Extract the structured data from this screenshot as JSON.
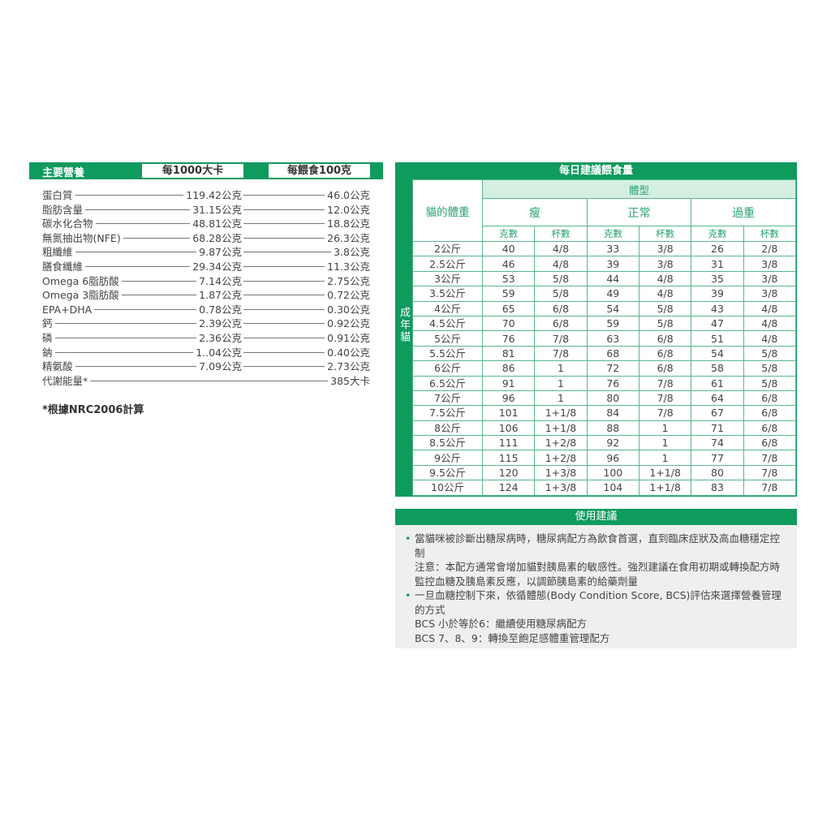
{
  "nutrition": {
    "header": "主要營養",
    "col1": "每1000大卡",
    "col2": "每餵食100克",
    "rows": [
      {
        "name": "蛋白質",
        "v1": "119.42公克",
        "v2": "46.0公克"
      },
      {
        "name": "脂肪含量",
        "v1": "31.15公克",
        "v2": "12.0公克"
      },
      {
        "name": "碳水化合物",
        "v1": "48.81公克",
        "v2": "18.8公克"
      },
      {
        "name": "無氮抽出物(NFE)",
        "v1": "68.28公克",
        "v2": "26.3公克"
      },
      {
        "name": "粗纖維",
        "v1": "9.87公克",
        "v2": "3.8公克"
      },
      {
        "name": "膳食纖維",
        "v1": "29.34公克",
        "v2": "11.3公克"
      },
      {
        "name": "Omega 6脂肪酸",
        "v1": "7.14公克",
        "v2": "2.75公克"
      },
      {
        "name": "Omega 3脂肪酸",
        "v1": "1.87公克",
        "v2": "0.72公克"
      },
      {
        "name": "EPA+DHA",
        "v1": "0.78公克",
        "v2": "0.30公克"
      },
      {
        "name": "鈣",
        "v1": "2.39公克",
        "v2": "0.92公克"
      },
      {
        "name": "磷",
        "v1": "2.36公克",
        "v2": "0.91公克"
      },
      {
        "name": "鈉",
        "v1": "1..04公克",
        "v2": "0.40公克"
      },
      {
        "name": "精氨酸",
        "v1": "7.09公克",
        "v2": "2.73公克"
      },
      {
        "name": "代謝能量*",
        "v1": "",
        "v2": "385大卡"
      }
    ],
    "footnote": "*根據NRC2006計算"
  },
  "feeding": {
    "title": "每日建議餵食量",
    "side": "成年貓",
    "weight_header": "貓的體重",
    "body_type": "體型",
    "types": [
      "瘦",
      "正常",
      "過重"
    ],
    "grams": "克數",
    "cups": "杯數",
    "rows": [
      [
        "2公斤",
        "40",
        "4/8",
        "33",
        "3/8",
        "26",
        "2/8"
      ],
      [
        "2.5公斤",
        "46",
        "4/8",
        "39",
        "3/8",
        "31",
        "3/8"
      ],
      [
        "3公斤",
        "53",
        "5/8",
        "44",
        "4/8",
        "35",
        "3/8"
      ],
      [
        "3.5公斤",
        "59",
        "5/8",
        "49",
        "4/8",
        "39",
        "3/8"
      ],
      [
        "4公斤",
        "65",
        "6/8",
        "54",
        "5/8",
        "43",
        "4/8"
      ],
      [
        "4.5公斤",
        "70",
        "6/8",
        "59",
        "5/8",
        "47",
        "4/8"
      ],
      [
        "5公斤",
        "76",
        "7/8",
        "63",
        "6/8",
        "51",
        "4/8"
      ],
      [
        "5.5公斤",
        "81",
        "7/8",
        "68",
        "6/8",
        "54",
        "5/8"
      ],
      [
        "6公斤",
        "86",
        "1",
        "72",
        "6/8",
        "58",
        "5/8"
      ],
      [
        "6.5公斤",
        "91",
        "1",
        "76",
        "7/8",
        "61",
        "5/8"
      ],
      [
        "7公斤",
        "96",
        "1",
        "80",
        "7/8",
        "64",
        "6/8"
      ],
      [
        "7.5公斤",
        "101",
        "1+1/8",
        "84",
        "7/8",
        "67",
        "6/8"
      ],
      [
        "8公斤",
        "106",
        "1+1/8",
        "88",
        "1",
        "71",
        "6/8"
      ],
      [
        "8.5公斤",
        "111",
        "1+2/8",
        "92",
        "1",
        "74",
        "6/8"
      ],
      [
        "9公斤",
        "115",
        "1+2/8",
        "96",
        "1",
        "77",
        "7/8"
      ],
      [
        "9.5公斤",
        "120",
        "1+3/8",
        "100",
        "1+1/8",
        "80",
        "7/8"
      ],
      [
        "10公斤",
        "124",
        "1+3/8",
        "104",
        "1+1/8",
        "83",
        "7/8"
      ]
    ]
  },
  "usage": {
    "title": "使用建議",
    "items": [
      {
        "main": "當貓咪被診斷出糖尿病時，糖尿病配方為飲食首選，直到臨床症狀及高血糖穩定控制",
        "notes": [
          "注意：本配方通常會增加貓對胰島素的敏感性。強烈建議在食用初期或轉換配方時監控血糖及胰島素反應，以調節胰島素的給藥劑量"
        ]
      },
      {
        "main": "一旦血糖控制下來，依循體態(Body Condition Score, BCS)評估來選擇營養管理的方式",
        "notes": [
          "BCS 小於等於6：繼續使用糖尿病配方",
          "BCS 7、8、9：轉換至飽足感體重管理配方"
        ]
      }
    ]
  }
}
